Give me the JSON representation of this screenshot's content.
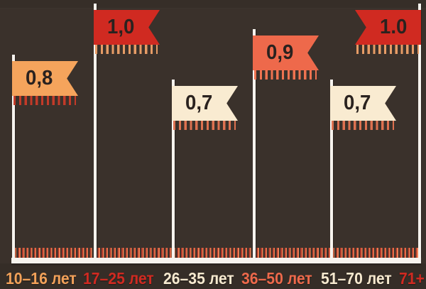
{
  "chart_data": {
    "type": "bar",
    "title": "",
    "categories": [
      "10–16 лет",
      "17–25 лет",
      "26–35 лет",
      "36–50 лет",
      "51–70 лет",
      "71+"
    ],
    "values": [
      0.8,
      1.0,
      0.7,
      0.9,
      0.7,
      1.0
    ],
    "ylim": [
      0,
      1.0
    ],
    "grid": false,
    "legend": false,
    "groups": [
      {
        "label": "10–16 лет",
        "value": 0.8,
        "flag_label": "0,8",
        "flag_color": "#f5a45c",
        "fringe_color": "#c33a28",
        "label_color": "#f2a159",
        "flag_side": "right"
      },
      {
        "label": "17–25 лет",
        "value": 1.0,
        "flag_label": "1,0",
        "flag_color": "#d02a21",
        "fringe_color": "#e69c66",
        "label_color": "#d02a21",
        "flag_side": "right"
      },
      {
        "label": "26–35 лет",
        "value": 0.7,
        "flag_label": "0,7",
        "flag_color": "#f9ebd1",
        "fringe_color": "#dd7150",
        "label_color": "#f6e9cf",
        "flag_side": "right"
      },
      {
        "label": "36–50 лет",
        "value": 0.9,
        "flag_label": "0,9",
        "flag_color": "#ee694b",
        "fringe_color": "#ef7350",
        "label_color": "#ed694b",
        "flag_side": "right"
      },
      {
        "label": "51–70 лет",
        "value": 0.7,
        "flag_label": "0,7",
        "flag_color": "#f9ebd1",
        "fringe_color": "#dd7150",
        "label_color": "#f6e9cf",
        "flag_side": "right"
      },
      {
        "label": "71+",
        "value": 1.0,
        "flag_label": "1.0",
        "flag_color": "#d02a21",
        "fringe_color": "#e69c66",
        "label_color": "#d02a21",
        "flag_side": "left"
      }
    ]
  },
  "colors": {
    "background": "#3a312b",
    "pole": "#f6f3ee",
    "baseline": "#f6f3ee",
    "flag_text": "#2a221f",
    "tick_red": "#b03b2c",
    "tick_orange": "#ee7e52"
  }
}
